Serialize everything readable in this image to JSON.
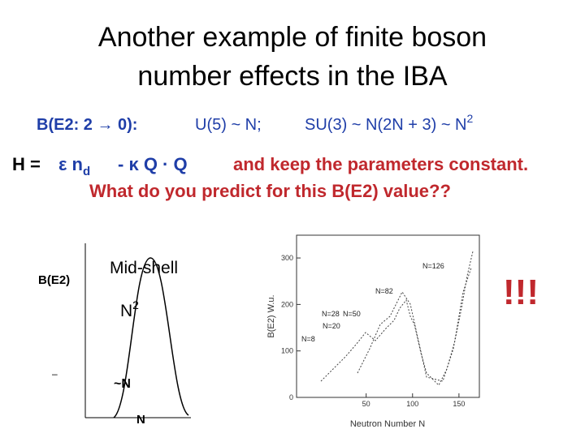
{
  "title": {
    "line1": "Another example of finite boson",
    "line2": "number effects in the IBA"
  },
  "rule": {
    "label": "B(E2: 2 → 0):",
    "u5": "U(5) ~ N;",
    "su3": "SU(3) ~ N(2N + 3) ~ N",
    "su3_sup": "2"
  },
  "hamiltonian": {
    "h": "H =",
    "term1": "ε n",
    "term1_sub": "d",
    "term2": "- κ Q · Q",
    "note": "and keep the parameters constant.",
    "question": "What do you predict for this B(E2) value??"
  },
  "sketch": {
    "y_label": "B(E2)",
    "mid": "Mid-shell",
    "peak": "N",
    "peak_sup": "2",
    "edge": "~N",
    "x_label": "N",
    "tick": "–"
  },
  "plot": {
    "y_label": "B(E2) W.u.",
    "x_label": "Neutron Number N",
    "xlim": [
      -25,
      172
    ],
    "ylim": [
      0,
      349
    ],
    "xticks": [
      50,
      100,
      150
    ],
    "yticks": [
      0,
      100,
      200,
      300
    ],
    "annotations": [
      "N=126",
      "N=82",
      "N=28",
      "N=50",
      "N=20",
      "N=8"
    ]
  },
  "exclaim": "!!!"
}
